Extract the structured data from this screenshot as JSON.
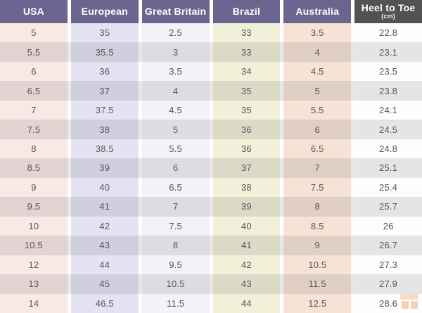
{
  "chart_data": {
    "type": "table",
    "columns": [
      "USA",
      "European",
      "Great Britain",
      "Brazil",
      "Australia",
      "Heel to Toe"
    ],
    "heel_to_toe_unit": "(cm)",
    "rows": [
      [
        "5",
        "35",
        "2.5",
        "33",
        "3.5",
        "22.8"
      ],
      [
        "5.5",
        "35.5",
        "3",
        "33",
        "4",
        "23.1"
      ],
      [
        "6",
        "36",
        "3.5",
        "34",
        "4.5",
        "23.5"
      ],
      [
        "6.5",
        "37",
        "4",
        "35",
        "5",
        "23.8"
      ],
      [
        "7",
        "37.5",
        "4.5",
        "35",
        "5.5",
        "24.1"
      ],
      [
        "7.5",
        "38",
        "5",
        "36",
        "6",
        "24.5"
      ],
      [
        "8",
        "38.5",
        "5.5",
        "36",
        "6.5",
        "24.8"
      ],
      [
        "8.5",
        "39",
        "6",
        "37",
        "7",
        "25.1"
      ],
      [
        "9",
        "40",
        "6.5",
        "38",
        "7.5",
        "25.4"
      ],
      [
        "9.5",
        "41",
        "7",
        "39",
        "8",
        "25.7"
      ],
      [
        "10",
        "42",
        "7.5",
        "40",
        "8.5",
        "26"
      ],
      [
        "10.5",
        "43",
        "8",
        "41",
        "9",
        "26.7"
      ],
      [
        "12",
        "44",
        "9.5",
        "42",
        "10.5",
        "27.3"
      ],
      [
        "13",
        "45",
        "10.5",
        "43",
        "11.5",
        "27.9"
      ],
      [
        "14",
        "46.5",
        "11.5",
        "44",
        "12.5",
        "28.6"
      ]
    ]
  },
  "colors": {
    "header_bg": "#6c6590",
    "header_last_bg": "#535153",
    "header_text": "#ffffff",
    "cell_text": "#57545c",
    "column_bg": [
      "#f9e9e5",
      "#e4e3f1",
      "#f3f2f7",
      "#f1f0d8",
      "#f6e3d5",
      "#fdfdfd"
    ],
    "watermark_orange": "#eda766"
  }
}
